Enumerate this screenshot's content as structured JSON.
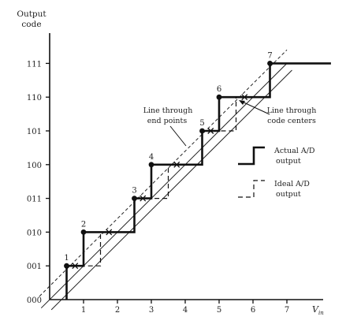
{
  "axis": {
    "y_title_line1": "Output",
    "y_title_line2": "code",
    "x_title": "V",
    "x_title_sub": "in"
  },
  "chart_data": {
    "type": "line",
    "x_ticks": [
      "1",
      "2",
      "3",
      "4",
      "5",
      "6",
      "7"
    ],
    "y_ticks": [
      "000",
      "001",
      "010",
      "011",
      "100",
      "101",
      "110",
      "111"
    ],
    "xlim": [
      0,
      8.3
    ],
    "ylim": [
      0,
      7.5
    ],
    "series": [
      {
        "name": "Actual A/D output",
        "style": "solid",
        "x": [
          0.5,
          0.5,
          1,
          1,
          2.5,
          2.5,
          3,
          3,
          4.5,
          4.5,
          5,
          5,
          6.5,
          6.5,
          8.3
        ],
        "y": [
          0,
          1,
          1,
          2,
          2,
          3,
          3,
          4,
          4,
          5,
          5,
          6,
          6,
          7,
          7
        ]
      },
      {
        "name": "Ideal A/D output",
        "style": "dashed",
        "x": [
          0.5,
          0.5,
          1.5,
          1.5,
          2.5,
          2.5,
          3.5,
          3.5,
          4.5,
          4.5,
          5.5,
          5.5,
          6.5,
          6.5
        ],
        "y": [
          0,
          1,
          1,
          2,
          2,
          3,
          3,
          4,
          4,
          5,
          5,
          6,
          6,
          7
        ]
      }
    ],
    "points": [
      {
        "label": "1",
        "x": 0.5,
        "y": 1
      },
      {
        "label": "2",
        "x": 1,
        "y": 2
      },
      {
        "label": "3",
        "x": 2.5,
        "y": 3
      },
      {
        "label": "4",
        "x": 3,
        "y": 4
      },
      {
        "label": "5",
        "x": 4.5,
        "y": 5
      },
      {
        "label": "6",
        "x": 5,
        "y": 6
      },
      {
        "label": "7",
        "x": 6.5,
        "y": 7
      }
    ],
    "crossings": [
      {
        "x": 0.75,
        "y": 1
      },
      {
        "x": 1.75,
        "y": 2
      },
      {
        "x": 2.75,
        "y": 3
      },
      {
        "x": 3.75,
        "y": 4
      },
      {
        "x": 4.75,
        "y": 5
      },
      {
        "x": 5.75,
        "y": 6
      }
    ],
    "reference_lines": [
      {
        "name": "line through end points",
        "style": "dashed",
        "x": [
          -0.3,
          7.0
        ],
        "y": [
          0.1,
          7.4
        ]
      },
      {
        "name": "line through code centers",
        "style": "solid",
        "x": [
          -0.25,
          7.0
        ],
        "y": [
          -0.25,
          7.0
        ]
      },
      {
        "name": "ideal line",
        "style": "solid",
        "x": [
          0.05,
          7.15
        ],
        "y": [
          -0.3,
          6.8
        ]
      }
    ]
  },
  "annotations": {
    "endpoints_line1": "Line through",
    "endpoints_line2": "end points",
    "centers_line1": "Line through",
    "centers_line2": "code centers"
  },
  "legend": {
    "actual_line1": "Actual A/D",
    "actual_line2": "output",
    "ideal_line1": "Ideal A/D",
    "ideal_line2": "output"
  }
}
